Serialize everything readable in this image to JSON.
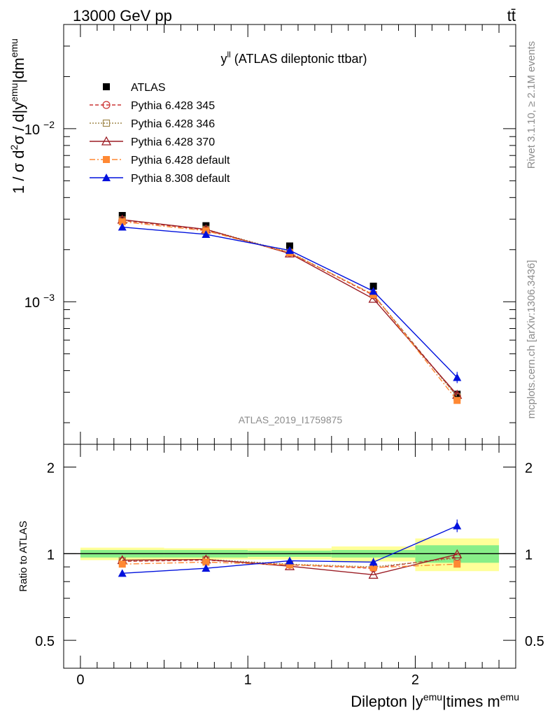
{
  "header": {
    "left": "13000 GeV pp",
    "right": "tt̄"
  },
  "side": {
    "rivet": "Rivet 3.1.10, ≥ 2.1M events",
    "mcplots": "mcplots.cern.ch [arXiv:1306.3436]"
  },
  "colors": {
    "atlas": "#000000",
    "p345": "#cc3333",
    "p346": "#a0884d",
    "p370": "#9b1c24",
    "p6def": "#ff8833",
    "p8def": "#0011dd",
    "band_inner": "#88ee88",
    "band_outer": "#ffff99"
  },
  "chart_data": [
    {
      "type": "line",
      "title": "y^ll (ATLAS dileptonic ttbar)",
      "title_main": "y",
      "title_sup": "ll",
      "title_rest": " (ATLAS dileptonic ttbar)",
      "ylabel": "1 / σ d²σ / d|yemu|dmemu",
      "ylabel_parts": {
        "a": "1 / σ  d",
        "a_sup": "2",
        "b": "σ / d|y",
        "b_sup": "emu",
        "c": "|dm",
        "c_sup": "emu"
      },
      "yscale": "log",
      "ylim": [
        0.00015,
        0.04
      ],
      "yticks_major": [
        {
          "v": 0.001,
          "base": "10",
          "exp": "−3"
        },
        {
          "v": 0.01,
          "base": "10",
          "exp": "−2"
        }
      ],
      "xlim": [
        -0.1,
        2.6
      ],
      "watermark": "ATLAS_2019_I1759875",
      "legend_position": "top-left",
      "x": [
        0.25,
        0.75,
        1.25,
        1.75,
        2.25
      ],
      "series": [
        {
          "name": "ATLAS",
          "key": "atlas",
          "values": [
            0.00315,
            0.00275,
            0.0021,
            0.00123,
            0.000292
          ]
        },
        {
          "name": "Pythia 6.428 345",
          "key": "p345",
          "values": [
            0.00295,
            0.0026,
            0.00192,
            0.00109,
            0.000285
          ]
        },
        {
          "name": "Pythia 6.428 346",
          "key": "p346",
          "values": [
            0.00297,
            0.00262,
            0.00193,
            0.0011,
            0.000282
          ]
        },
        {
          "name": "Pythia 6.428 370",
          "key": "p370",
          "values": [
            0.00298,
            0.00262,
            0.0019,
            0.00104,
            0.00029
          ]
        },
        {
          "name": "Pythia 6.428 default",
          "key": "p6def",
          "values": [
            0.0029,
            0.00257,
            0.00192,
            0.0011,
            0.000269
          ]
        },
        {
          "name": "Pythia 8.308 default",
          "key": "p8def",
          "values": [
            0.0027,
            0.00245,
            0.00198,
            0.00115,
            0.000365
          ]
        }
      ]
    },
    {
      "type": "line",
      "ylabel": "Ratio to ATLAS",
      "xlabel": "Dilepton |yemu|times memu",
      "xlabel_parts": {
        "a": "Dilepton |y",
        "a_sup": "emu",
        "b": "|times m",
        "b_sup": "emu"
      },
      "ylim": [
        0.4,
        2.4
      ],
      "yticks": [
        "0.5",
        "1",
        "2"
      ],
      "xticks": [
        "0",
        "1",
        "2"
      ],
      "bins": [
        [
          0,
          0.5
        ],
        [
          0.5,
          1
        ],
        [
          1,
          1.5
        ],
        [
          1.5,
          2
        ],
        [
          2,
          2.5
        ]
      ],
      "band_inner": [
        0.03,
        0.03,
        0.025,
        0.03,
        0.07
      ],
      "band_outer": [
        0.05,
        0.045,
        0.045,
        0.06,
        0.13
      ],
      "x": [
        0.25,
        0.75,
        1.25,
        1.75,
        2.25
      ],
      "series": [
        {
          "name": "Pythia 6.428 345",
          "key": "p345",
          "values": [
            0.94,
            0.95,
            0.915,
            0.89,
            0.975
          ]
        },
        {
          "name": "Pythia 6.428 346",
          "key": "p346",
          "values": [
            0.945,
            0.955,
            0.92,
            0.9,
            0.965
          ]
        },
        {
          "name": "Pythia 6.428 370",
          "key": "p370",
          "values": [
            0.95,
            0.955,
            0.905,
            0.845,
            0.995
          ]
        },
        {
          "name": "Pythia 6.428 default",
          "key": "p6def",
          "values": [
            0.92,
            0.935,
            0.915,
            0.895,
            0.92
          ]
        },
        {
          "name": "Pythia 8.308 default",
          "key": "p8def",
          "values": [
            0.855,
            0.89,
            0.945,
            0.935,
            1.25
          ]
        }
      ]
    }
  ]
}
